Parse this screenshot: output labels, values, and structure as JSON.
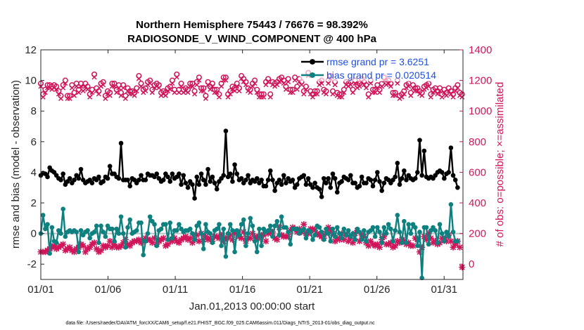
{
  "chart_data": {
    "type": "line",
    "title_line1": "Northern Hemisphere 75443 / 76676 = 98.392%",
    "title_line2": "RADIOSONDE_V_WIND_COMPONENT @ 400 hPa",
    "xlabel": "Jan.01,2013 00:00:00 start",
    "ylabel_left": "rmse and bias (model - observation)",
    "ylabel_right": "# of obs: o=possible; ×=assimilated",
    "xlim": [
      0,
      31.4
    ],
    "ylim_left": [
      -3,
      12
    ],
    "ylim_right": [
      -100,
      1400
    ],
    "x_ticks": [
      0,
      5,
      10,
      15,
      20,
      25,
      30
    ],
    "x_tick_labels": [
      "01/01",
      "01/06",
      "01/11",
      "01/16",
      "01/21",
      "01/26",
      "01/31"
    ],
    "y_ticks_left": [
      -2,
      0,
      2,
      4,
      6,
      8,
      10,
      12
    ],
    "y_ticks_right": [
      0,
      200,
      400,
      600,
      800,
      1000,
      1200,
      1400
    ],
    "zero_line": 0,
    "footer": "data file: /Users/raeder/DAI/ATM_forcXX/CAM6_setup/f.e21.FHIST_BGC.f09_025.CAM6assim.011/Diags_NTrS_2013-01/obs_diag_output.nc",
    "colors": {
      "rmse": "#000000",
      "bias": "#0e8080",
      "obs": "#d0155a",
      "legend_text": "#1f4fe0",
      "zero_line": "#bfbfbf"
    },
    "series": [
      {
        "name": "rmse",
        "legend": "rmse grand pr = 3.6251",
        "axis": "left",
        "values": [
          3.8,
          3.95,
          3.9,
          3.7,
          4.3,
          4.1,
          4.0,
          3.8,
          3.6,
          3.5,
          3.9,
          3.2,
          3.4,
          3.6,
          3.3,
          3.5,
          3.8,
          3.6,
          4.2,
          3.5,
          3.3,
          3.4,
          3.5,
          3.3,
          3.6,
          3.5,
          3.7,
          3.3,
          3.4,
          3.7,
          3.6,
          4.4,
          3.9,
          3.9,
          3.7,
          3.6,
          5.9,
          3.5,
          3.5,
          3.5,
          3.1,
          3.6,
          3.5,
          3.3,
          3.5,
          3.8,
          3.5,
          3.5,
          3.9,
          3.8,
          3.8,
          3.7,
          3.9,
          3.6,
          3.4,
          3.5,
          3.9,
          3.7,
          3.4,
          3.9,
          3.6,
          3.7,
          3.9,
          3.2,
          3.8,
          3.3,
          3.0,
          3.4,
          3.2,
          2.3,
          3.7,
          3.2,
          3.9,
          3.5,
          3.2,
          4.2,
          3.4,
          3.7,
          3.3,
          2.9,
          3.4,
          3.6,
          3.8,
          6.7,
          3.7,
          3.9,
          3.4,
          4.5,
          3.9,
          3.5,
          3.6,
          3.3,
          3.5,
          3.8,
          3.3,
          3.5,
          3.4,
          3.6,
          3.3,
          3.5,
          3.1,
          3.1,
          3.5,
          4.1,
          3.5,
          2.8,
          3.3,
          3.5,
          3.2,
          3.8,
          3.3,
          3.6,
          3.4,
          3.5,
          3.0,
          3.2,
          3.6,
          3.7,
          3.8,
          3.2,
          3.6,
          3.2,
          3.0,
          3.3,
          3.0,
          2.9,
          2.4,
          3.6,
          3.3,
          3.6,
          3.0,
          3.9,
          3.6,
          2.7,
          3.3,
          3.4,
          3.7,
          3.6,
          3.5,
          3.8,
          3.3,
          3.3,
          3.0,
          3.1,
          3.7,
          3.3,
          3.3,
          3.6,
          3.5,
          3.1,
          3.5,
          4.0,
          3.4,
          2.8,
          3.3,
          3.6,
          3.5,
          3.3,
          3.5,
          3.7,
          4.6,
          3.2,
          3.6,
          4.1,
          3.5,
          3.8,
          3.6,
          3.5,
          3.6,
          4.0,
          6.1,
          3.8,
          5.4,
          3.7,
          3.6,
          3.7,
          3.6,
          3.8,
          4.0,
          4.1,
          4.0,
          3.6,
          3.9,
          4.0,
          5.6,
          3.8,
          3.5,
          3.0
        ]
      },
      {
        "name": "bias",
        "legend": "bias grand pr = 0.020514",
        "axis": "left",
        "values": [
          0.0,
          1.2,
          0.3,
          0.6,
          -1.3,
          0.4,
          -0.5,
          -0.6,
          0.2,
          0.0,
          1.6,
          -0.2,
          0.1,
          0.2,
          0.1,
          0.2,
          0.1,
          -1.2,
          0.2,
          -0.1,
          0.1,
          0.2,
          -0.3,
          0.0,
          0.1,
          0.5,
          -0.6,
          0.5,
          0.1,
          -0.2,
          0.5,
          0.3,
          0.3,
          -0.5,
          0.3,
          0.0,
          1.1,
          0.0,
          -0.9,
          0.4,
          0.9,
          0.0,
          0.1,
          0.2,
          0.7,
          0.7,
          -1.4,
          -0.5,
          0.0,
          1.1,
          0.8,
          0.6,
          -0.8,
          0.2,
          0.3,
          0.6,
          0.6,
          -0.4,
          0.7,
          -0.3,
          0.2,
          0.2,
          0.6,
          0.3,
          0.1,
          0.2,
          0.2,
          0.3,
          0.0,
          -0.4,
          0.5,
          0.7,
          0.0,
          -1.0,
          0.6,
          0.1,
          0.0,
          -0.6,
          0.2,
          0.3,
          0.6,
          -0.8,
          0.3,
          -1.5,
          0.0,
          0.6,
          0.2,
          -1.2,
          0.2,
          -0.1,
          0.6,
          0.9,
          -0.8,
          0.0,
          1.0,
          0.5,
          -0.5,
          -1.2,
          0.3,
          -0.8,
          0.3,
          0.1,
          0.2,
          0.5,
          -0.2,
          0.5,
          0.8,
          -0.1,
          1.1,
          0.4,
          0.4,
          0.1,
          -0.7,
          0.3,
          0.3,
          0.3,
          0.0,
          0.2,
          0.3,
          -0.3,
          0.2,
          0.1,
          -0.4,
          -0.1,
          0.5,
          0.4,
          0.1,
          -0.4,
          0.3,
          0.0,
          -0.5,
          0.3,
          -0.2,
          0.4,
          0.0,
          -0.3,
          0.3,
          -0.1,
          0.2,
          -0.2,
          0.0,
          -0.4,
          0.3,
          0.1,
          -0.4,
          0.2,
          -0.5,
          0.1,
          0.2,
          0.4,
          -0.2,
          0.4,
          0.1,
          -0.6,
          0.4,
          0.0,
          0.6,
          0.3,
          -0.5,
          0.2,
          1.2,
          0.1,
          -0.6,
          0.8,
          -0.6,
          0.6,
          0.0,
          0.6,
          0.4,
          -0.8,
          0.1,
          -2.9,
          0.4,
          0.4,
          -0.7,
          0.2,
          0.4,
          0.2,
          -0.6,
          0.6,
          0.0,
          -0.5,
          0.1,
          -0.2,
          1.9,
          0.1,
          -0.5,
          -0.5
        ]
      },
      {
        "name": "possible",
        "axis": "right",
        "marker": "o",
        "values": [
          1180,
          1110,
          1140,
          1170,
          1170,
          1160,
          1170,
          1160,
          1130,
          1100,
          1170,
          1200,
          1100,
          1100,
          1170,
          1120,
          1180,
          1140,
          1180,
          1150,
          1180,
          1160,
          1110,
          1140,
          1240,
          1150,
          1130,
          1180,
          1190,
          1100,
          1130,
          1120,
          1180,
          1180,
          1140,
          1170,
          1120,
          1170,
          1100,
          1150,
          1130,
          1130,
          1120,
          1150,
          1230,
          1180,
          1140,
          1150,
          1190,
          1200,
          1140,
          1170,
          1180,
          1170,
          1120,
          1130,
          1120,
          1150,
          1160,
          1200,
          1140,
          1240,
          1140,
          1180,
          1140,
          1150,
          1140,
          1180,
          1180,
          1130,
          1190,
          1220,
          1150,
          1150,
          1100,
          1190,
          1160,
          1180,
          1140,
          1140,
          1110,
          1180,
          1220,
          1220,
          1110,
          1130,
          1160,
          1150,
          1180,
          1150,
          1230,
          1210,
          1190,
          1150,
          1140,
          1180,
          1200,
          1140,
          1110,
          1110,
          1110,
          1190,
          1210,
          1110,
          1190,
          1180,
          1190,
          1210,
          1220,
          1200,
          1160,
          1210,
          1140,
          1140,
          1220,
          1160,
          1210,
          1190,
          1130,
          1160,
          1250,
          1130,
          1110,
          1130,
          1130,
          1190,
          1200,
          1140,
          1130,
          1200,
          1230,
          1130,
          1190,
          1120,
          1110,
          1110,
          1140,
          1190,
          1180,
          1190,
          1140,
          1200,
          1170,
          1180,
          1210,
          1190,
          1170,
          1110,
          1200,
          1140,
          1140,
          1170,
          1140,
          1180,
          1220,
          1190,
          1200,
          1180,
          1120,
          1120,
          1200,
          1100,
          1110,
          1130,
          1170,
          1180,
          1120,
          1170,
          1150,
          1150,
          1130,
          1120,
          1160,
          1170,
          1180,
          1110,
          1140,
          1150,
          1130,
          1150,
          1110,
          1140,
          1120,
          1150,
          1130,
          1110,
          1150,
          1170,
          1120,
          1110
        ]
      },
      {
        "name": "assimilated",
        "axis": "right",
        "marker": "x",
        "values": [
          80,
          80,
          80,
          90,
          100,
          110,
          120,
          100,
          110,
          120,
          130,
          90,
          100,
          110,
          90,
          80,
          100,
          110,
          130,
          120,
          80,
          100,
          110,
          130,
          140,
          100,
          80,
          90,
          120,
          110,
          120,
          150,
          110,
          130,
          110,
          110,
          120,
          140,
          160,
          130,
          120,
          140,
          150,
          150,
          160,
          140,
          150,
          170,
          160,
          160,
          140,
          170,
          130,
          150,
          160,
          170,
          120,
          130,
          160,
          150,
          170,
          150,
          140,
          160,
          170,
          180,
          160,
          170,
          140,
          160,
          190,
          150,
          200,
          160,
          180,
          160,
          170,
          150,
          180,
          180,
          170,
          190,
          150,
          170,
          170,
          190,
          160,
          200,
          210,
          180,
          170,
          210,
          150,
          170,
          170,
          200,
          180,
          170,
          180,
          190,
          190,
          150,
          200,
          210,
          210,
          170,
          160,
          240,
          190,
          180,
          180,
          180,
          220,
          240,
          230,
          210,
          230,
          210,
          260,
          200,
          200,
          230,
          230,
          220,
          200,
          190,
          180,
          170,
          200,
          240,
          220,
          200,
          150,
          170,
          160,
          200,
          160,
          190,
          150,
          170,
          140,
          200,
          220,
          150,
          190,
          180,
          140,
          120,
          150,
          130,
          120,
          130,
          110,
          160,
          180,
          130,
          130,
          140,
          110,
          120,
          150,
          140,
          160,
          150,
          130,
          140,
          120,
          120,
          170,
          160,
          80,
          110,
          180,
          160,
          200,
          170,
          140,
          150,
          130,
          140,
          170,
          160,
          150,
          190,
          150,
          110,
          130,
          150,
          110,
          -20
        ]
      }
    ]
  }
}
